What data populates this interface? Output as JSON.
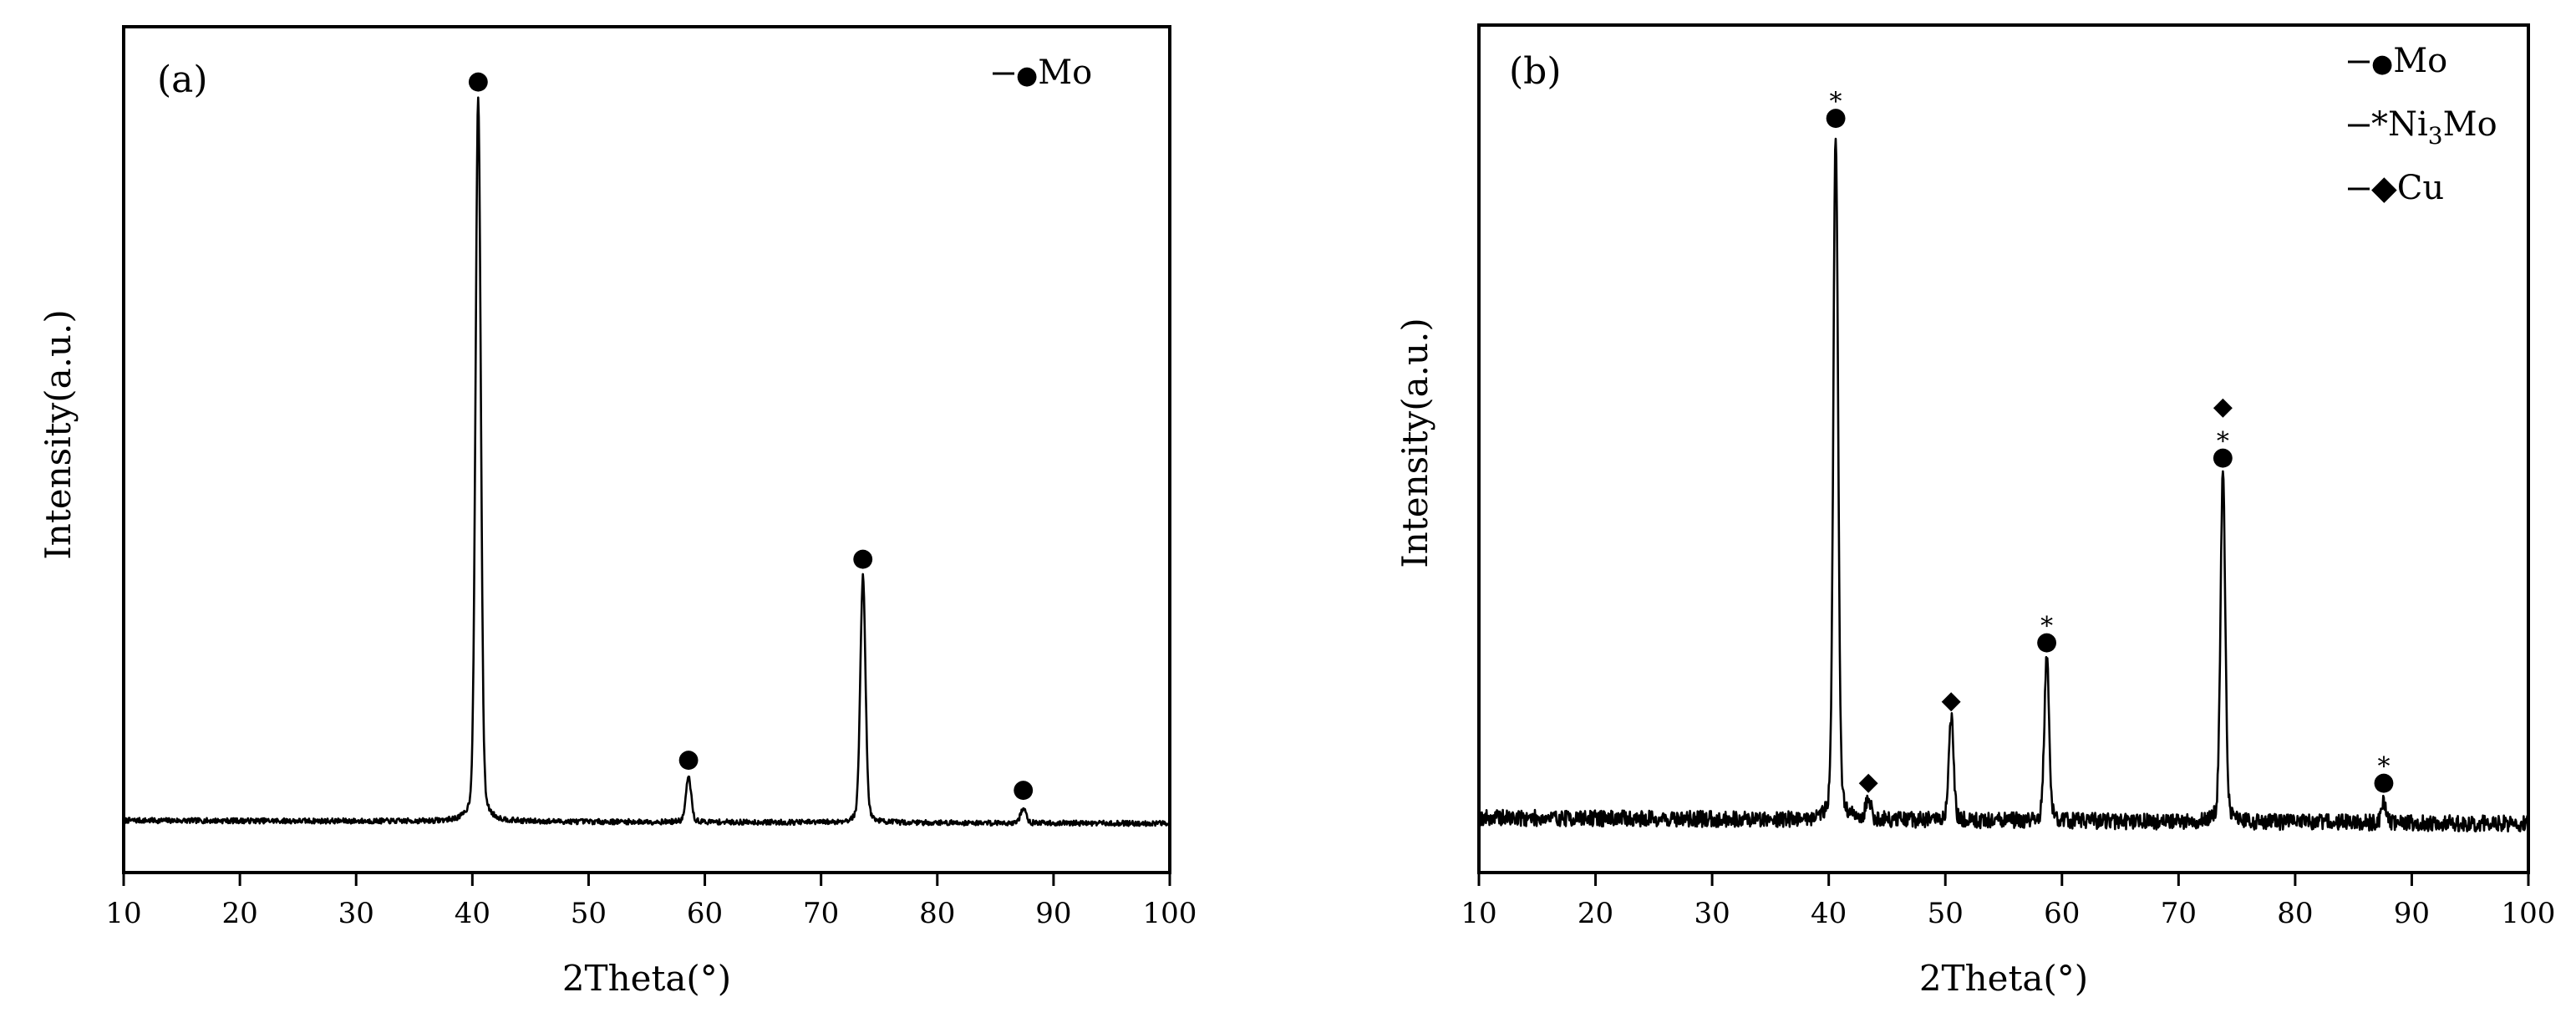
{
  "chart_data": [
    {
      "type": "line",
      "panel_label": "(a)",
      "xlabel": "2Theta(°)",
      "ylabel": "Intensity(a.u.)",
      "xlim": [
        10,
        100
      ],
      "xticks": [
        "10",
        "20",
        "30",
        "40",
        "50",
        "60",
        "70",
        "80",
        "90",
        "100"
      ],
      "ylim": [
        0,
        100
      ],
      "y_ticks_shown": false,
      "grid": false,
      "legend_placement": "top-right",
      "legend": [
        {
          "marker": "●",
          "name": "Mo"
        }
      ],
      "baseline": 3,
      "noise": 0.35,
      "peaks": [
        {
          "x": 40.5,
          "y": 100,
          "labels": [
            "●"
          ]
        },
        {
          "x": 58.6,
          "y": 9,
          "labels": [
            "●"
          ]
        },
        {
          "x": 73.6,
          "y": 36,
          "labels": [
            "●"
          ]
        },
        {
          "x": 87.4,
          "y": 5,
          "labels": [
            "●"
          ]
        }
      ]
    },
    {
      "type": "line",
      "panel_label": "(b)",
      "xlabel": "2Theta(°)",
      "ylabel": "Intensity(a.u.)",
      "xlim": [
        10,
        100
      ],
      "xticks": [
        "10",
        "20",
        "30",
        "40",
        "50",
        "60",
        "70",
        "80",
        "90",
        "100"
      ],
      "ylim": [
        0,
        100
      ],
      "y_ticks_shown": false,
      "grid": false,
      "legend_placement": "top-right",
      "legend": [
        {
          "marker": "●",
          "name": "Mo"
        },
        {
          "marker": "*",
          "name": "Ni",
          "sub": "3",
          "name_after": "Mo"
        },
        {
          "marker": "◆",
          "name": "Cu"
        }
      ],
      "baseline": 3,
      "noise": 1.1,
      "peaks": [
        {
          "x": 40.6,
          "y": 96,
          "labels": [
            "●",
            "*"
          ]
        },
        {
          "x": 43.4,
          "y": 6,
          "labels": [
            "◆"
          ]
        },
        {
          "x": 50.5,
          "y": 17,
          "labels": [
            "◆"
          ]
        },
        {
          "x": 58.7,
          "y": 25,
          "labels": [
            "●",
            "*"
          ]
        },
        {
          "x": 73.8,
          "y": 50,
          "labels": [
            "●",
            "*",
            "◆"
          ]
        },
        {
          "x": 87.6,
          "y": 6,
          "labels": [
            "●",
            "*"
          ]
        }
      ]
    }
  ]
}
